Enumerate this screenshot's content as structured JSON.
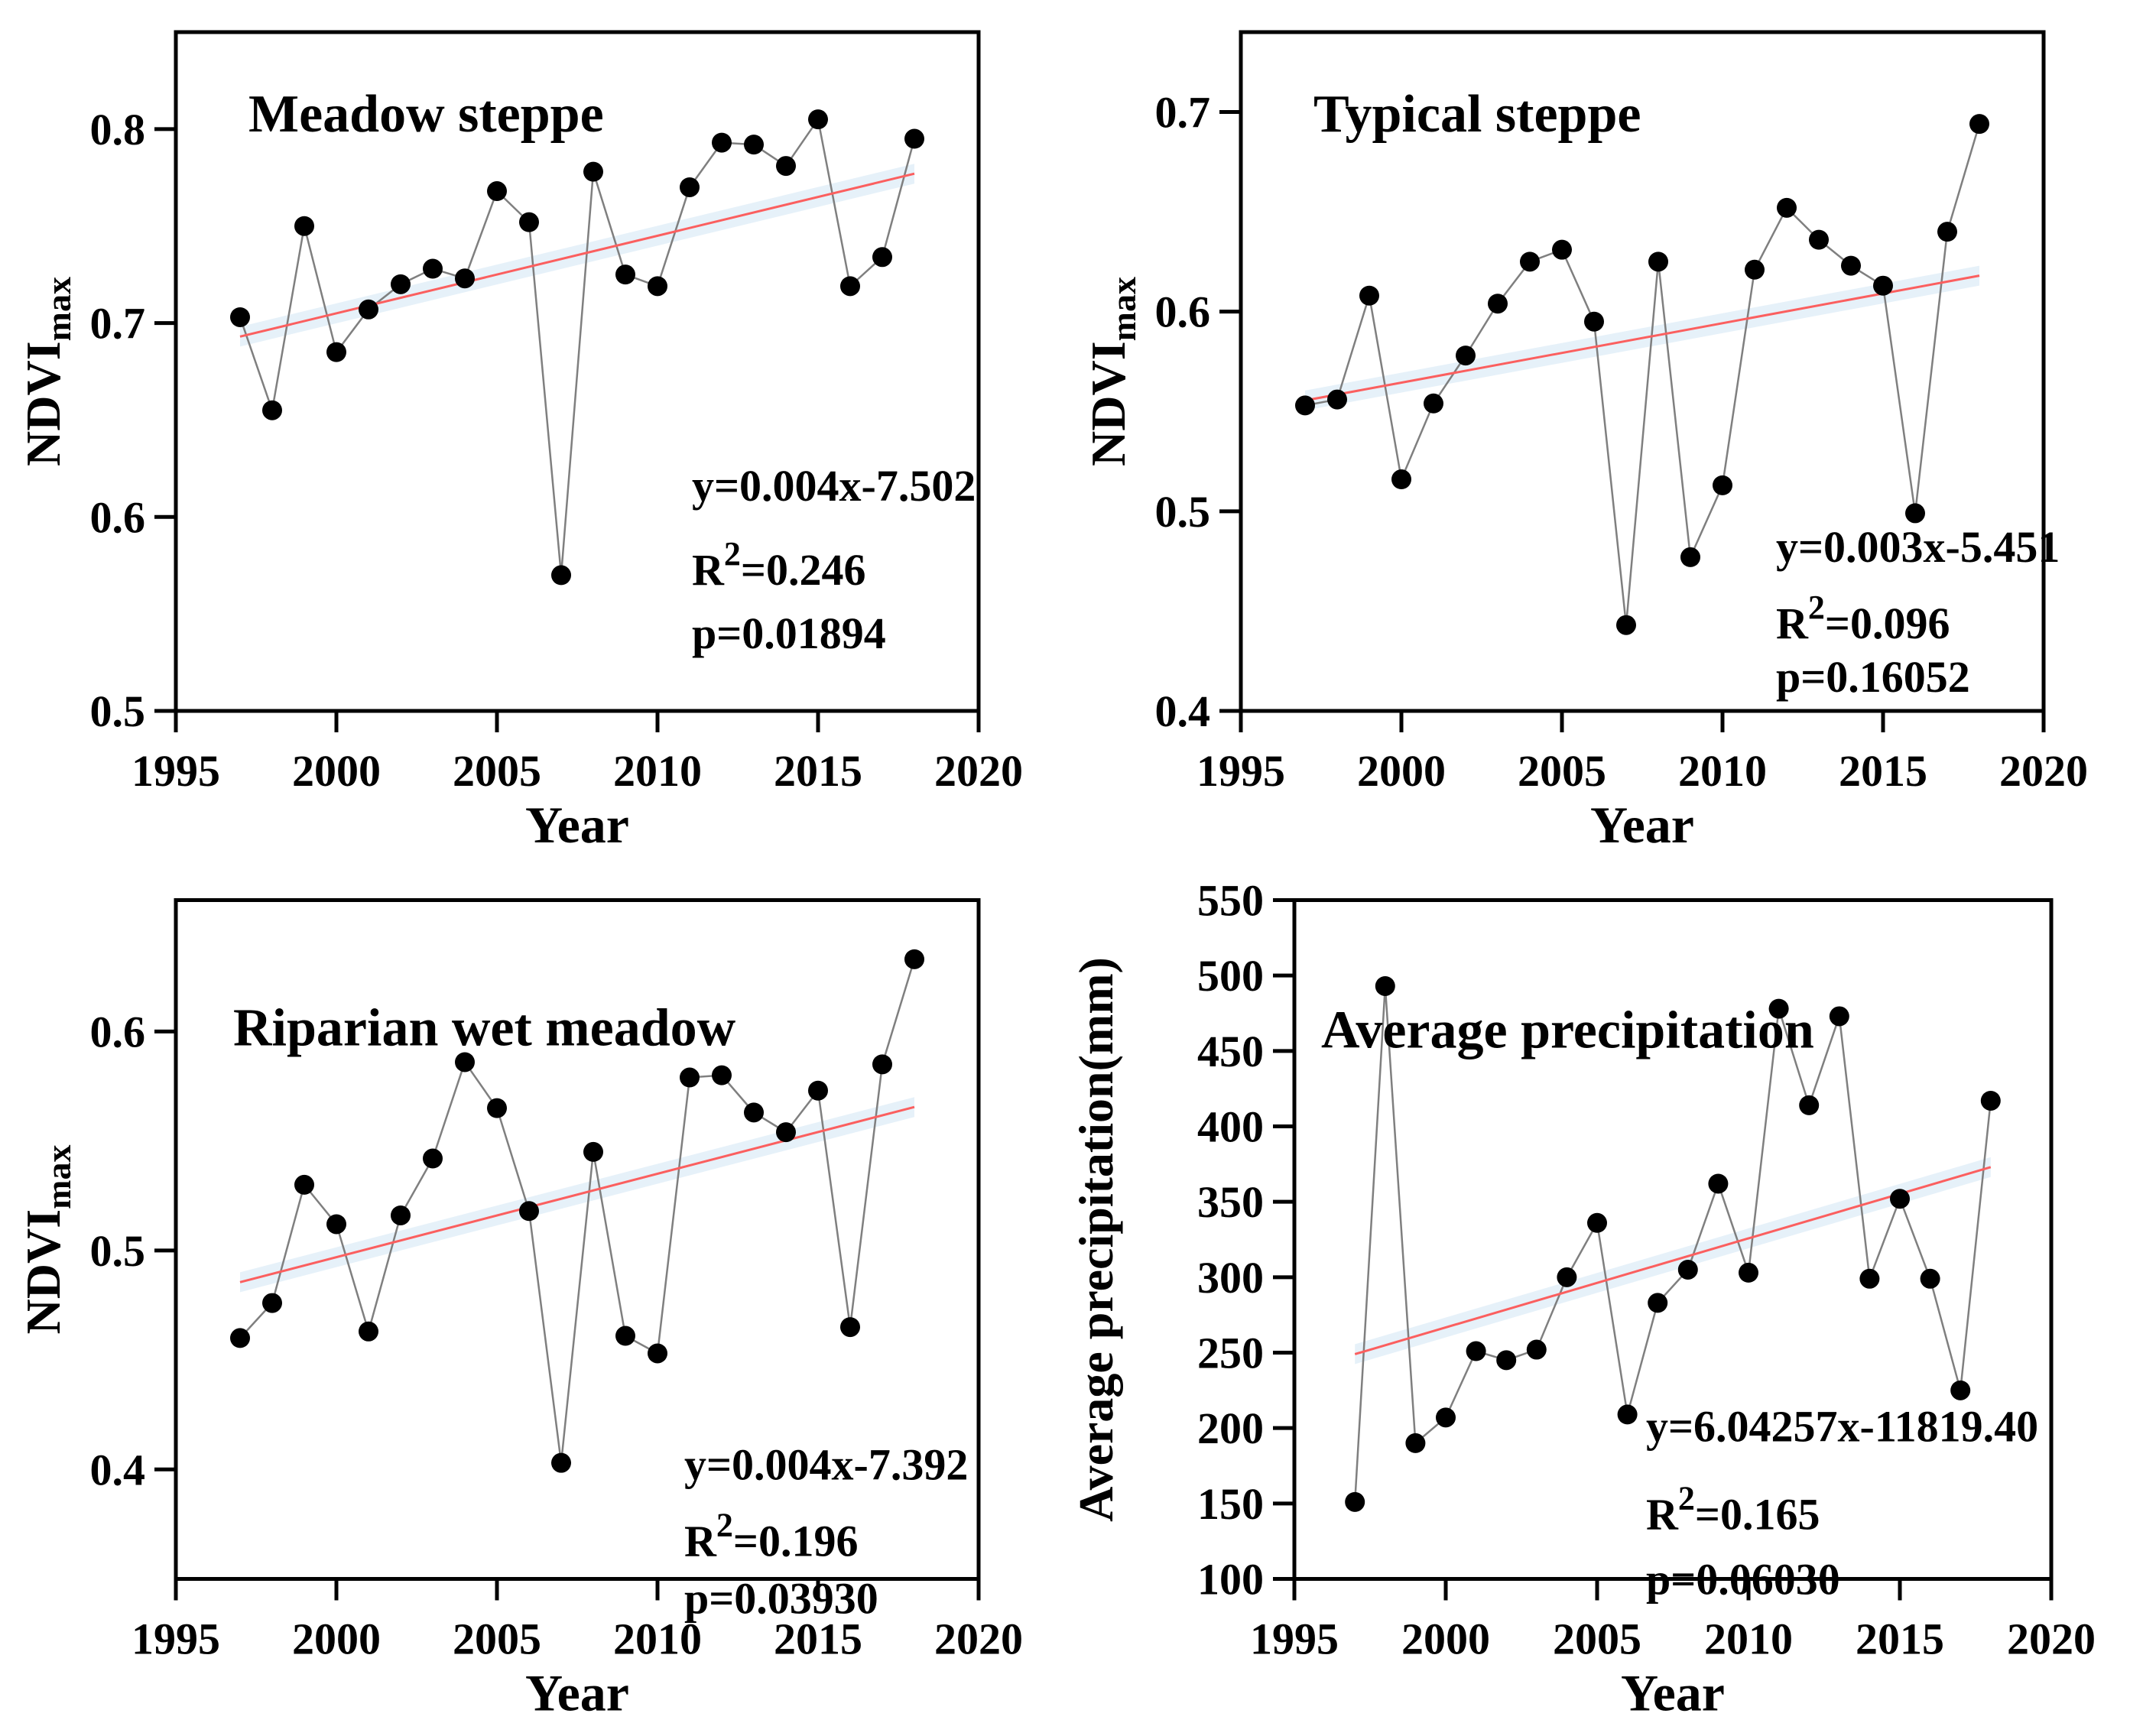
{
  "page": {
    "background": "#ffffff",
    "description": "Four-panel figure of interannual NDVImax and precipitation trends 1997-2018"
  },
  "colors": {
    "axis": "#000000",
    "text": "#000000",
    "marker": "#000000",
    "series_line": "#7f7f7f",
    "trend_line": "#fb5f5f",
    "confidence_band": "#bcd9ee",
    "background": "#ffffff"
  },
  "chart_data": [
    {
      "type": "line",
      "id": "meadow-steppe",
      "title": "Meadow steppe",
      "xlabel": "Year",
      "ylabel": {
        "base": "NDVI",
        "sub": "max"
      },
      "xlim": [
        1995,
        2020
      ],
      "ylim": [
        0.5,
        0.85
      ],
      "x_ticks": [
        "1995",
        "2000",
        "2005",
        "2010",
        "2015",
        "2020"
      ],
      "y_ticks": [
        "0.5",
        "0.6",
        "0.7",
        "0.8"
      ],
      "grid": "off",
      "x": [
        1997,
        1998,
        1999,
        2000,
        2001,
        2002,
        2003,
        2004,
        2005,
        2006,
        2007,
        2008,
        2009,
        2010,
        2011,
        2012,
        2013,
        2014,
        2015,
        2016,
        2017,
        2018
      ],
      "y": [
        0.703,
        0.655,
        0.75,
        0.685,
        0.707,
        0.72,
        0.728,
        0.723,
        0.768,
        0.752,
        0.57,
        0.778,
        0.725,
        0.719,
        0.77,
        0.793,
        0.792,
        0.781,
        0.805,
        0.719,
        0.734,
        0.795
      ],
      "trendline": {
        "x": [
          1997,
          2018
        ],
        "y": [
          0.693,
          0.777
        ]
      },
      "annotation": {
        "equation": "y=0.004x-7.502",
        "r2_base": "R",
        "r2_sup": "2",
        "r2_rest": "=0.246",
        "p_line": "p=0.01894"
      }
    },
    {
      "type": "line",
      "id": "typical-steppe",
      "title": "Typical steppe",
      "xlabel": "Year",
      "ylabel": {
        "base": "NDVI",
        "sub": "max"
      },
      "xlim": [
        1995,
        2020
      ],
      "ylim": [
        0.4,
        0.74
      ],
      "x_ticks": [
        "1995",
        "2000",
        "2005",
        "2010",
        "2015",
        "2020"
      ],
      "y_ticks": [
        "0.4",
        "0.5",
        "0.6",
        "0.7"
      ],
      "grid": "off",
      "x": [
        1997,
        1998,
        1999,
        2000,
        2001,
        2002,
        2003,
        2004,
        2005,
        2006,
        2007,
        2008,
        2009,
        2010,
        2011,
        2012,
        2013,
        2014,
        2015,
        2016,
        2017,
        2018
      ],
      "y": [
        0.553,
        0.556,
        0.608,
        0.516,
        0.554,
        0.578,
        0.604,
        0.625,
        0.631,
        0.595,
        0.443,
        0.625,
        0.477,
        0.513,
        0.621,
        0.652,
        0.636,
        0.623,
        0.613,
        0.499,
        0.64,
        0.694
      ],
      "trendline": {
        "x": [
          1997,
          2018
        ],
        "y": [
          0.5555,
          0.618
        ]
      },
      "annotation": {
        "equation": "y=0.003x-5.451",
        "r2_base": "R",
        "r2_sup": "2",
        "r2_rest": "=0.096",
        "p_line": "p=0.16052"
      }
    },
    {
      "type": "line",
      "id": "riparian-wet-meadow",
      "title": "Riparian wet meadow",
      "xlabel": "Year",
      "ylabel": {
        "base": "NDVI",
        "sub": "max"
      },
      "xlim": [
        1995,
        2020
      ],
      "ylim": [
        0.35,
        0.66
      ],
      "x_ticks": [
        "1995",
        "2000",
        "2005",
        "2010",
        "2015",
        "2020"
      ],
      "y_ticks": [
        "0.4",
        "0.5",
        "0.6"
      ],
      "grid": "off",
      "x": [
        1997,
        1998,
        1999,
        2000,
        2001,
        2002,
        2003,
        2004,
        2005,
        2006,
        2007,
        2008,
        2009,
        2010,
        2011,
        2012,
        2013,
        2014,
        2015,
        2016,
        2017,
        2018
      ],
      "y": [
        0.46,
        0.476,
        0.53,
        0.512,
        0.463,
        0.516,
        0.542,
        0.586,
        0.565,
        0.518,
        0.403,
        0.545,
        0.461,
        0.453,
        0.579,
        0.58,
        0.563,
        0.554,
        0.573,
        0.465,
        0.585,
        0.633
      ],
      "trendline": {
        "x": [
          1997,
          2018
        ],
        "y": [
          0.4855,
          0.5655
        ]
      },
      "annotation": {
        "equation": "y=0.004x-7.392",
        "r2_base": "R",
        "r2_sup": "2",
        "r2_rest": "=0.196",
        "p_line": "p=0.03930"
      }
    },
    {
      "type": "line",
      "id": "average-precipitation",
      "title": "Average precipitation",
      "xlabel": "Year",
      "ylabel": {
        "base": "Average precipitation(mm)",
        "sub": ""
      },
      "xlim": [
        1995,
        2020
      ],
      "ylim": [
        100,
        550
      ],
      "x_ticks": [
        "1995",
        "2000",
        "2005",
        "2010",
        "2015",
        "2020"
      ],
      "y_ticks": [
        "100",
        "150",
        "200",
        "250",
        "300",
        "350",
        "400",
        "450",
        "500",
        "550"
      ],
      "grid": "off",
      "x": [
        1997,
        1998,
        1999,
        2000,
        2001,
        2002,
        2003,
        2004,
        2005,
        2006,
        2007,
        2008,
        2009,
        2010,
        2011,
        2012,
        2013,
        2014,
        2015,
        2016,
        2017,
        2018
      ],
      "y": [
        151,
        493,
        190,
        207,
        251,
        245,
        252,
        300,
        336,
        209,
        283,
        305,
        362,
        303,
        478,
        414,
        473,
        299,
        352,
        299,
        225,
        417
      ],
      "trendline": {
        "x": [
          1997,
          2018
        ],
        "y": [
          249,
          373
        ]
      },
      "annotation": {
        "equation": "y=6.04257x-11819.40",
        "r2_base": "R",
        "r2_sup": "2",
        "r2_rest": "=0.165",
        "p_line": "p=0.06030"
      }
    }
  ]
}
